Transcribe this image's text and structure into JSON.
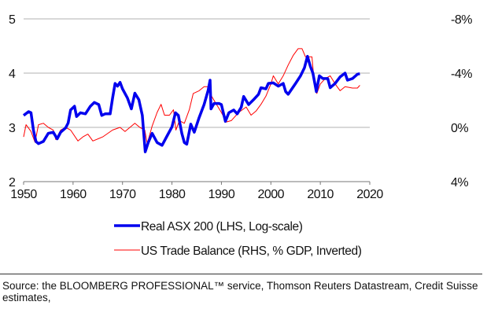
{
  "chart_data": {
    "type": "line",
    "title": "",
    "xlabel": "",
    "ylabel": "",
    "xlim": [
      1950,
      2020
    ],
    "ylim_left": [
      2,
      5
    ],
    "ylim_right": [
      4,
      -8
    ],
    "right_axis_inverted": true,
    "grid": "horizontal",
    "legend_position": "bottom",
    "x_ticks": [
      "1950",
      "1960",
      "1970",
      "1980",
      "1990",
      "2000",
      "2010",
      "2020"
    ],
    "x_tick_values": [
      1950,
      1960,
      1970,
      1980,
      1990,
      2000,
      2010,
      2020
    ],
    "y_left_ticks": [
      "2",
      "3",
      "4",
      "5"
    ],
    "y_left_tick_values": [
      2,
      3,
      4,
      5
    ],
    "y_right_ticks": [
      "4%",
      "0%",
      "-4%",
      "-8%"
    ],
    "y_right_tick_values": [
      4,
      0,
      -4,
      -8
    ],
    "series": [
      {
        "name": "Real ASX 200 (LHS, Log-scale)",
        "axis": "left",
        "color": "#0000ee",
        "x": [
          1950,
          1951,
          1951.5,
          1952,
          1952.5,
          1953,
          1954,
          1955,
          1956,
          1956.8,
          1957.5,
          1958.5,
          1959,
          1959.5,
          1960.3,
          1960.7,
          1961.5,
          1962.5,
          1963.5,
          1964.3,
          1965.2,
          1965.8,
          1966.5,
          1967.5,
          1968,
          1968.5,
          1969,
          1969.5,
          1970,
          1971,
          1971.8,
          1972.5,
          1973.3,
          1974,
          1974.6,
          1975.2,
          1976,
          1977,
          1978,
          1979,
          1980,
          1980.7,
          1981.3,
          1982,
          1982.5,
          1983,
          1983.8,
          1984.5,
          1985.5,
          1986.5,
          1987.3,
          1987.7,
          1987.9,
          1988.5,
          1989.5,
          1990,
          1990.8,
          1991.5,
          1992.5,
          1993.2,
          1994,
          1994.5,
          1995.5,
          1996.5,
          1997.5,
          1998,
          1999,
          1999.5,
          2000.5,
          2001.5,
          2002.5,
          2003,
          2003.5,
          2005,
          2006,
          2006.8,
          2007.4,
          2008,
          2008.5,
          2009.2,
          2009.8,
          2010.5,
          2011.5,
          2012,
          2013,
          2014,
          2015,
          2015.5,
          2016.5,
          2017.5,
          2018
        ],
        "y": [
          3.22,
          3.29,
          3.27,
          2.94,
          2.74,
          2.7,
          2.74,
          2.89,
          2.91,
          2.79,
          2.91,
          2.99,
          3.08,
          3.32,
          3.39,
          3.2,
          3.27,
          3.25,
          3.39,
          3.46,
          3.42,
          3.22,
          3.25,
          3.25,
          3.54,
          3.81,
          3.76,
          3.83,
          3.71,
          3.54,
          3.34,
          3.63,
          3.51,
          3.22,
          2.55,
          2.72,
          2.89,
          2.72,
          2.67,
          2.84,
          3.01,
          3.27,
          3.22,
          2.89,
          2.72,
          2.69,
          3.06,
          2.91,
          3.18,
          3.42,
          3.68,
          3.87,
          3.34,
          3.44,
          3.44,
          3.42,
          3.11,
          3.27,
          3.32,
          3.25,
          3.37,
          3.57,
          3.42,
          3.51,
          3.61,
          3.73,
          3.71,
          3.81,
          3.82,
          3.76,
          3.81,
          3.66,
          3.61,
          3.81,
          3.95,
          4.1,
          4.31,
          4.12,
          4.0,
          3.66,
          3.95,
          3.9,
          3.9,
          3.73,
          3.81,
          3.93,
          4.0,
          3.87,
          3.9,
          3.98,
          3.99
        ]
      },
      {
        "name": "US Trade Balance (RHS, % GDP, Inverted)",
        "axis": "right",
        "color": "#ff0000",
        "x": [
          1950,
          1950.5,
          1951.5,
          1952.3,
          1953,
          1954,
          1955,
          1956,
          1956.5,
          1957.5,
          1958.5,
          1959.5,
          1961,
          1962,
          1963,
          1964,
          1966,
          1968,
          1969.5,
          1970.5,
          1972.5,
          1973.5,
          1974.5,
          1975,
          1976,
          1977,
          1977.8,
          1978.5,
          1979.5,
          1980.3,
          1980.8,
          1981.5,
          1982.5,
          1983.5,
          1984.3,
          1985.5,
          1986.5,
          1987.5,
          1988,
          1989,
          1990,
          1991,
          1992,
          1993.5,
          1995,
          1996,
          1997,
          1998,
          1999,
          2000,
          2000.5,
          2001.5,
          2002.5,
          2003.5,
          2004.5,
          2005.5,
          2006.3,
          2007,
          2008.3,
          2008.7,
          2009.3,
          2010,
          2011,
          2012,
          2013,
          2014,
          2015,
          2016.5,
          2017.5,
          2018
        ],
        "y": [
          0.7,
          -0.2,
          0.3,
          1.1,
          -0.2,
          -0.3,
          0,
          0.2,
          0.9,
          0.2,
          0,
          0.2,
          1.0,
          0.7,
          0.5,
          1.0,
          0.7,
          0.2,
          0,
          0.3,
          -0.3,
          0,
          0.2,
          1.2,
          -0.1,
          -1.1,
          -1.7,
          -0.9,
          -0.9,
          -1.3,
          0.2,
          -0.5,
          -0.3,
          -1.3,
          -2.5,
          -2.7,
          -3.0,
          -3.0,
          -2.3,
          -1.7,
          -1.1,
          -0.4,
          -0.5,
          -1.1,
          -1.5,
          -0.9,
          -1.2,
          -1.7,
          -2.3,
          -3.2,
          -3.8,
          -3.2,
          -3.8,
          -4.6,
          -5.3,
          -5.8,
          -5.8,
          -5.2,
          -5.2,
          -3.6,
          -2.5,
          -3.2,
          -3.6,
          -3.8,
          -3.2,
          -2.7,
          -3.0,
          -2.9,
          -2.9,
          -3.1
        ]
      }
    ]
  },
  "source": "Source: the BLOOMBERG PROFESSIONAL™ service, Thomson Reuters Datastream, Credit Suisse estimates,"
}
